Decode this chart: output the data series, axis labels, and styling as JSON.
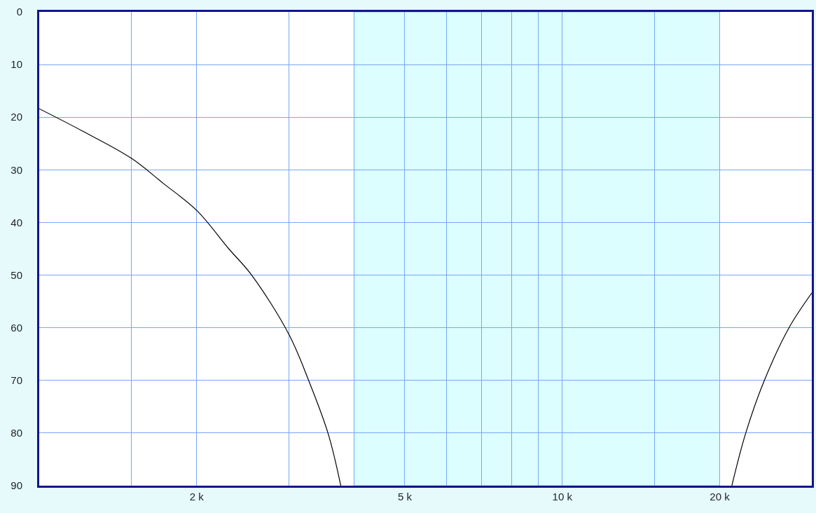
{
  "chart_data": {
    "type": "line",
    "series": [
      {
        "color": "#000000",
        "x": [
          1000,
          1208,
          1500,
          1728,
          2000,
          2304,
          2548,
          3000,
          3277,
          3570,
          3772
        ],
        "values": [
          18.4,
          22.6,
          27.8,
          32.6,
          37.7,
          45,
          50,
          61.2,
          70.1,
          80.2,
          90
        ]
      },
      {
        "color": "#000000",
        "x": [
          21100,
          22400,
          24300,
          27100,
          30000
        ],
        "values": [
          90,
          80.2,
          70.2,
          60.1,
          53.4
        ]
      }
    ],
    "log": "x",
    "xlim": [
      1000,
      30000
    ],
    "xticks": [
      {
        "value": 1500,
        "label": null
      },
      {
        "value": 2000,
        "label": "2 k"
      },
      {
        "value": 3000,
        "label": null
      },
      {
        "value": 4000,
        "label": null
      },
      {
        "value": 5000,
        "label": "5 k"
      },
      {
        "value": 6000,
        "label": null
      },
      {
        "value": 7000,
        "label": null
      },
      {
        "value": 8000,
        "label": null
      },
      {
        "value": 9000,
        "label": null
      },
      {
        "value": 10000,
        "label": "10 k"
      },
      {
        "value": 15000,
        "label": null
      },
      {
        "value": 20000,
        "label": "20 k"
      }
    ],
    "ylim": [
      90,
      0
    ],
    "yticks": [
      0,
      10,
      20,
      30,
      40,
      50,
      60,
      70,
      80,
      90
    ],
    "grid": true,
    "marker": "none",
    "line_style": "solid",
    "bands": [
      {
        "axis": "x",
        "from": 4000,
        "to": 20000,
        "color": "#dcfefe"
      }
    ]
  }
}
